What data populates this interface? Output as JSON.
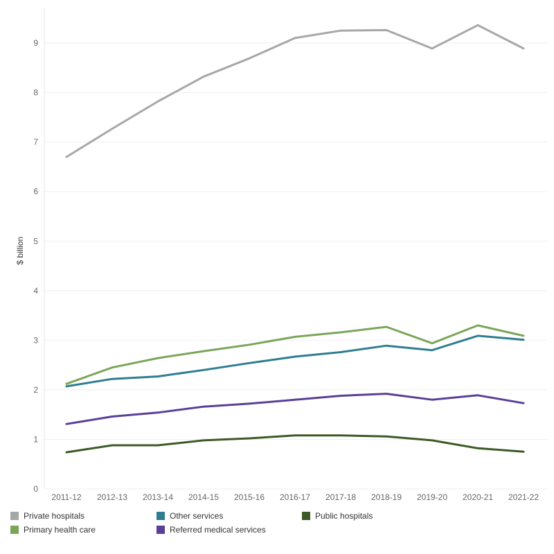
{
  "chart_data": {
    "type": "line",
    "title": "",
    "xlabel": "",
    "ylabel": "$ billion",
    "ylim": [
      0,
      9.7
    ],
    "yticks": [
      0,
      1,
      2,
      3,
      4,
      5,
      6,
      7,
      8,
      9
    ],
    "grid": true,
    "legend_position": "bottom",
    "categories": [
      "2011-12",
      "2012-13",
      "2013-14",
      "2014-15",
      "2015-16",
      "2016-17",
      "2017-18",
      "2018-19",
      "2019-20",
      "2020-21",
      "2021-22"
    ],
    "series": [
      {
        "name": "Private hospitals",
        "color": "#a5a8a6",
        "values": [
          6.7,
          7.27,
          7.82,
          8.32,
          8.69,
          9.1,
          9.25,
          9.26,
          8.89,
          9.36,
          8.89
        ]
      },
      {
        "name": "Other services",
        "color": "#2e7d91",
        "values": [
          2.07,
          2.22,
          2.27,
          2.4,
          2.54,
          2.67,
          2.76,
          2.89,
          2.8,
          3.09,
          3.01
        ]
      },
      {
        "name": "Public hospitals",
        "color": "#3b5a25",
        "values": [
          0.74,
          0.88,
          0.88,
          0.98,
          1.02,
          1.08,
          1.08,
          1.06,
          0.98,
          0.82,
          0.75
        ]
      },
      {
        "name": "Primary health care",
        "color": "#7aa65a",
        "values": [
          2.12,
          2.45,
          2.64,
          2.78,
          2.91,
          3.07,
          3.16,
          3.27,
          2.94,
          3.3,
          3.09
        ]
      },
      {
        "name": "Referred medical services",
        "color": "#5a3f98",
        "values": [
          1.31,
          1.46,
          1.54,
          1.66,
          1.72,
          1.8,
          1.88,
          1.92,
          1.8,
          1.89,
          1.73
        ]
      }
    ]
  }
}
